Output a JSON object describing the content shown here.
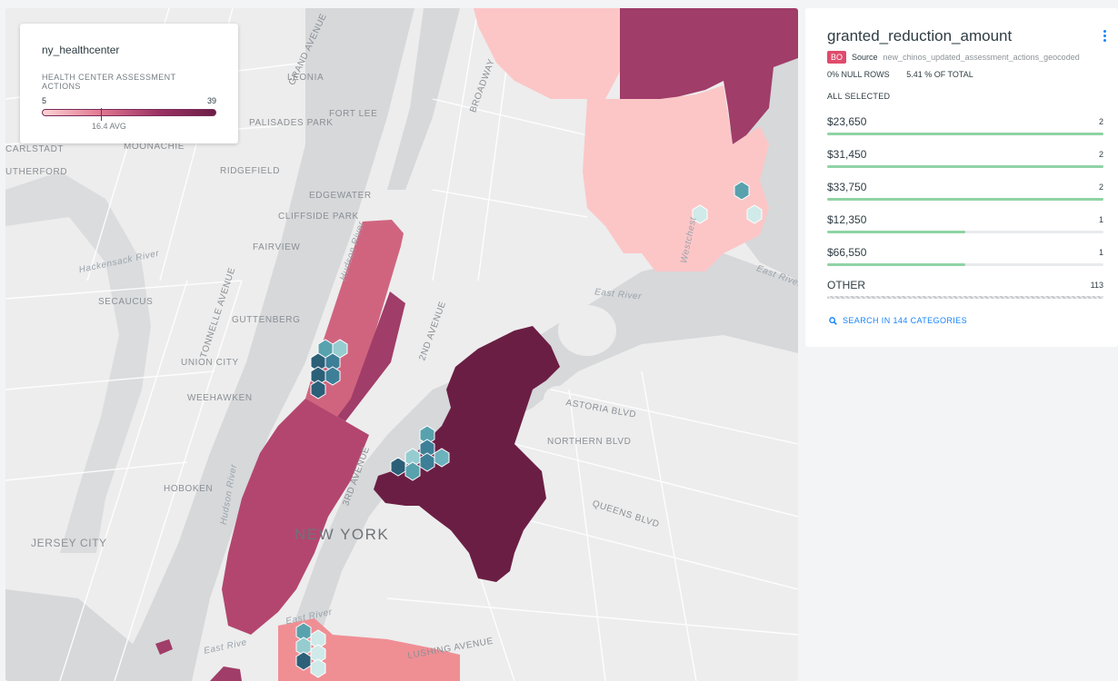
{
  "colors": {
    "accent": "#1785fb",
    "bar_fill": "#8fd3a5",
    "badge": "#e04b6c"
  },
  "map": {
    "labels": {
      "new_york": "NEW YORK",
      "jersey_city": "JERSEY CITY",
      "hoboken": "HOBOKEN",
      "weehawken": "WEEHAWKEN",
      "union_city": "UNION CITY",
      "guttenberg": "GUTTENBERG",
      "secaucus": "SECAUCUS",
      "fairview": "FAIRVIEW",
      "cliffside_park": "CLIFFSIDE PARK",
      "edgewater": "EDGEWATER",
      "ridgefield": "RIDGEFIELD",
      "palisades_park": "PALISADES PARK",
      "fort_lee": "FORT LEE",
      "leonia": "LEONIA",
      "moonachie": "MOONACHIE",
      "carlstadt": "CARLSTADT",
      "rutherford": "UTHERFORD",
      "hackensack_river": "Hackensack River",
      "hudson_river": "Hudson River",
      "east_river": "East River",
      "broadway": "BROADWAY",
      "astoria_blvd": "ASTORIA BLVD",
      "northern_blvd": "NORTHERN BLVD",
      "queens_blvd": "QUEENS BLVD",
      "lushing_ave": "LUSHING AVENUE",
      "east_river_2": "East Rive",
      "westchester": "Westchest",
      "grand_ave": "GRAND AVENUE",
      "tonnelle_ave": "TONNELLE AVENUE",
      "second_ave": "2ND AVENUE",
      "third_ave": "3RD AVENUE"
    }
  },
  "legend": {
    "title": "ny_healthcenter",
    "subtitle": "HEALTH CENTER ASSESSMENT ACTIONS",
    "min": "5",
    "max": "39",
    "avg_label": "16.4 AVG"
  },
  "widget": {
    "title": "granted_reduction_amount",
    "source_badge": "BO",
    "source_label": "Source",
    "source_name": "new_chinos_updated_assessment_actions_geocoded",
    "null_rows": "0% NULL ROWS",
    "pct_total": "5.41 % OF TOTAL",
    "all_selected": "ALL SELECTED",
    "categories": [
      {
        "name": "$23,650",
        "count": "2",
        "fraction": 1.0
      },
      {
        "name": "$31,450",
        "count": "2",
        "fraction": 1.0
      },
      {
        "name": "$33,750",
        "count": "2",
        "fraction": 1.0
      },
      {
        "name": "$12,350",
        "count": "1",
        "fraction": 0.5
      },
      {
        "name": "$66,550",
        "count": "1",
        "fraction": 0.5
      }
    ],
    "other": {
      "name": "OTHER",
      "count": "113"
    },
    "search_label": "SEARCH IN 144 CATEGORIES"
  }
}
